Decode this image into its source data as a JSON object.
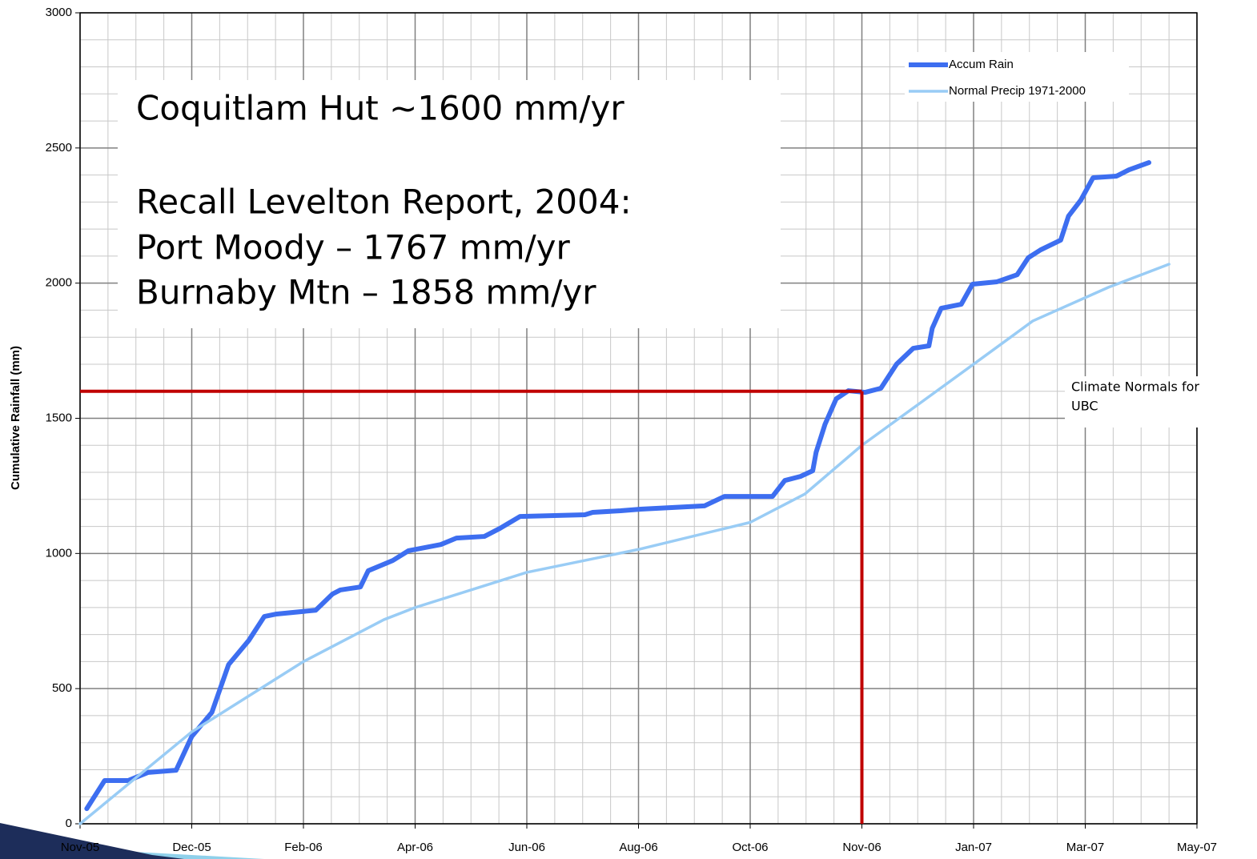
{
  "chart_data": {
    "type": "line",
    "ylabel": "Cumulative Rainfall (mm)",
    "xlim": [
      0,
      10
    ],
    "ylim": [
      0,
      3000
    ],
    "xticks": [
      {
        "value": 0,
        "label": "Nov-05"
      },
      {
        "value": 1,
        "label": "Dec-05"
      },
      {
        "value": 2,
        "label": "Feb-06"
      },
      {
        "value": 3,
        "label": "Apr-06"
      },
      {
        "value": 4,
        "label": "Jun-06"
      },
      {
        "value": 5,
        "label": "Aug-06"
      },
      {
        "value": 6,
        "label": "Oct-06"
      },
      {
        "value": 7,
        "label": "Nov-06"
      },
      {
        "value": 8,
        "label": "Jan-07"
      },
      {
        "value": 9,
        "label": "Mar-07"
      },
      {
        "value": 10,
        "label": "May-07"
      }
    ],
    "yticks": [
      0,
      500,
      1000,
      1500,
      2000,
      2500,
      3000
    ],
    "grid": true,
    "minor_grid": {
      "x": 4,
      "y": 5
    },
    "legend": "upper right",
    "series": [
      {
        "name": "Accum Rain",
        "color": "#3d6ef0",
        "width": 6,
        "x": [
          0.06,
          0.22,
          0.43,
          0.61,
          0.86,
          1.0,
          1.18,
          1.33,
          1.51,
          1.65,
          1.76,
          2.11,
          2.26,
          2.33,
          2.51,
          2.58,
          2.8,
          2.94,
          3.23,
          3.37,
          3.62,
          3.76,
          3.94,
          4.52,
          4.59,
          4.84,
          5.02,
          5.59,
          5.77,
          6.2,
          6.31,
          6.45,
          6.56,
          6.59,
          6.67,
          6.77,
          6.88,
          7.03,
          7.17,
          7.31,
          7.46,
          7.6,
          7.63,
          7.71,
          7.89,
          7.99,
          8.21,
          8.39,
          8.49,
          8.6,
          8.78,
          8.85,
          8.96,
          9.07,
          9.28,
          9.39,
          9.57
        ],
        "values": [
          56,
          160,
          160,
          190,
          198,
          323,
          412,
          589,
          678,
          767,
          776,
          790,
          850,
          865,
          876,
          936,
          974,
          1010,
          1033,
          1057,
          1063,
          1093,
          1137,
          1143,
          1152,
          1158,
          1164,
          1176,
          1211,
          1211,
          1270,
          1285,
          1306,
          1374,
          1478,
          1572,
          1602,
          1596,
          1611,
          1700,
          1759,
          1768,
          1833,
          1907,
          1922,
          1996,
          2005,
          2031,
          2094,
          2123,
          2159,
          2248,
          2307,
          2390,
          2396,
          2419,
          2446
        ]
      },
      {
        "name": "Normal Precip 1971-2000",
        "color": "#99ccf5",
        "width": 3.5,
        "x": [
          0,
          1,
          2,
          2.72,
          3,
          4,
          5,
          6,
          6.49,
          7,
          8,
          8.53,
          9.21,
          9.75
        ],
        "values": [
          0,
          340,
          600,
          755,
          800,
          930,
          1015,
          1115,
          1220,
          1400,
          1700,
          1860,
          1985,
          2070
        ]
      }
    ],
    "reference": {
      "x": 7,
      "y": 1600,
      "color": "#c00000"
    },
    "annotation_box": [
      "Coquitlam Hut ~1600 mm/yr",
      "Recall Levelton Report, 2004:",
      "Port Moody – 1767 mm/yr",
      "Burnaby Mtn – 1858 mm/yr"
    ],
    "note": [
      "Climate Normals for",
      "UBC"
    ]
  }
}
